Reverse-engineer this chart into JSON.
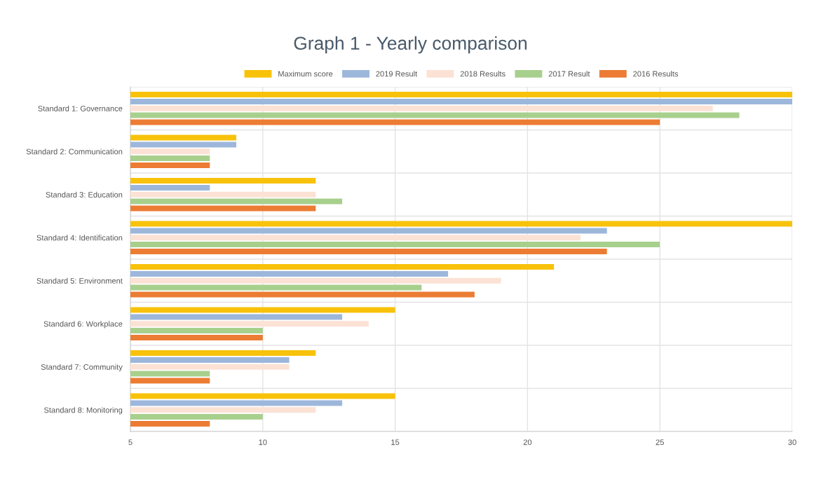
{
  "chart_data": {
    "type": "bar",
    "orientation": "horizontal",
    "title": "Graph 1 - Yearly comparison",
    "categories": [
      "Standard 1: Governance",
      "Standard 2: Communication",
      "Standard 3: Education",
      "Standard 4: Identification",
      "Standard 5: Environment",
      "Standard 6: Workplace",
      "Standard 7: Community",
      "Standard 8: Monitoring"
    ],
    "series": [
      {
        "name": "Maximum score",
        "color": "#f8c20a",
        "values": [
          30,
          9,
          12,
          30,
          21,
          15,
          12,
          15
        ]
      },
      {
        "name": "2019 Result",
        "color": "#9db7db",
        "values": [
          30,
          9,
          8,
          23,
          17,
          13,
          11,
          13
        ]
      },
      {
        "name": "2018 Results",
        "color": "#fbe2d5",
        "values": [
          27,
          8,
          12,
          22,
          19,
          14,
          11,
          12
        ]
      },
      {
        "name": "2017 Result",
        "color": "#a8d08d",
        "values": [
          28,
          8,
          13,
          25,
          16,
          10,
          8,
          10
        ]
      },
      {
        "name": "2016 Results",
        "color": "#ec7c33",
        "values": [
          25,
          8,
          12,
          23,
          18,
          10,
          8,
          8
        ]
      }
    ],
    "xlim": [
      5,
      30
    ],
    "xticks": [
      5,
      10,
      15,
      20,
      25,
      30
    ],
    "grid": true,
    "legend": "top"
  }
}
